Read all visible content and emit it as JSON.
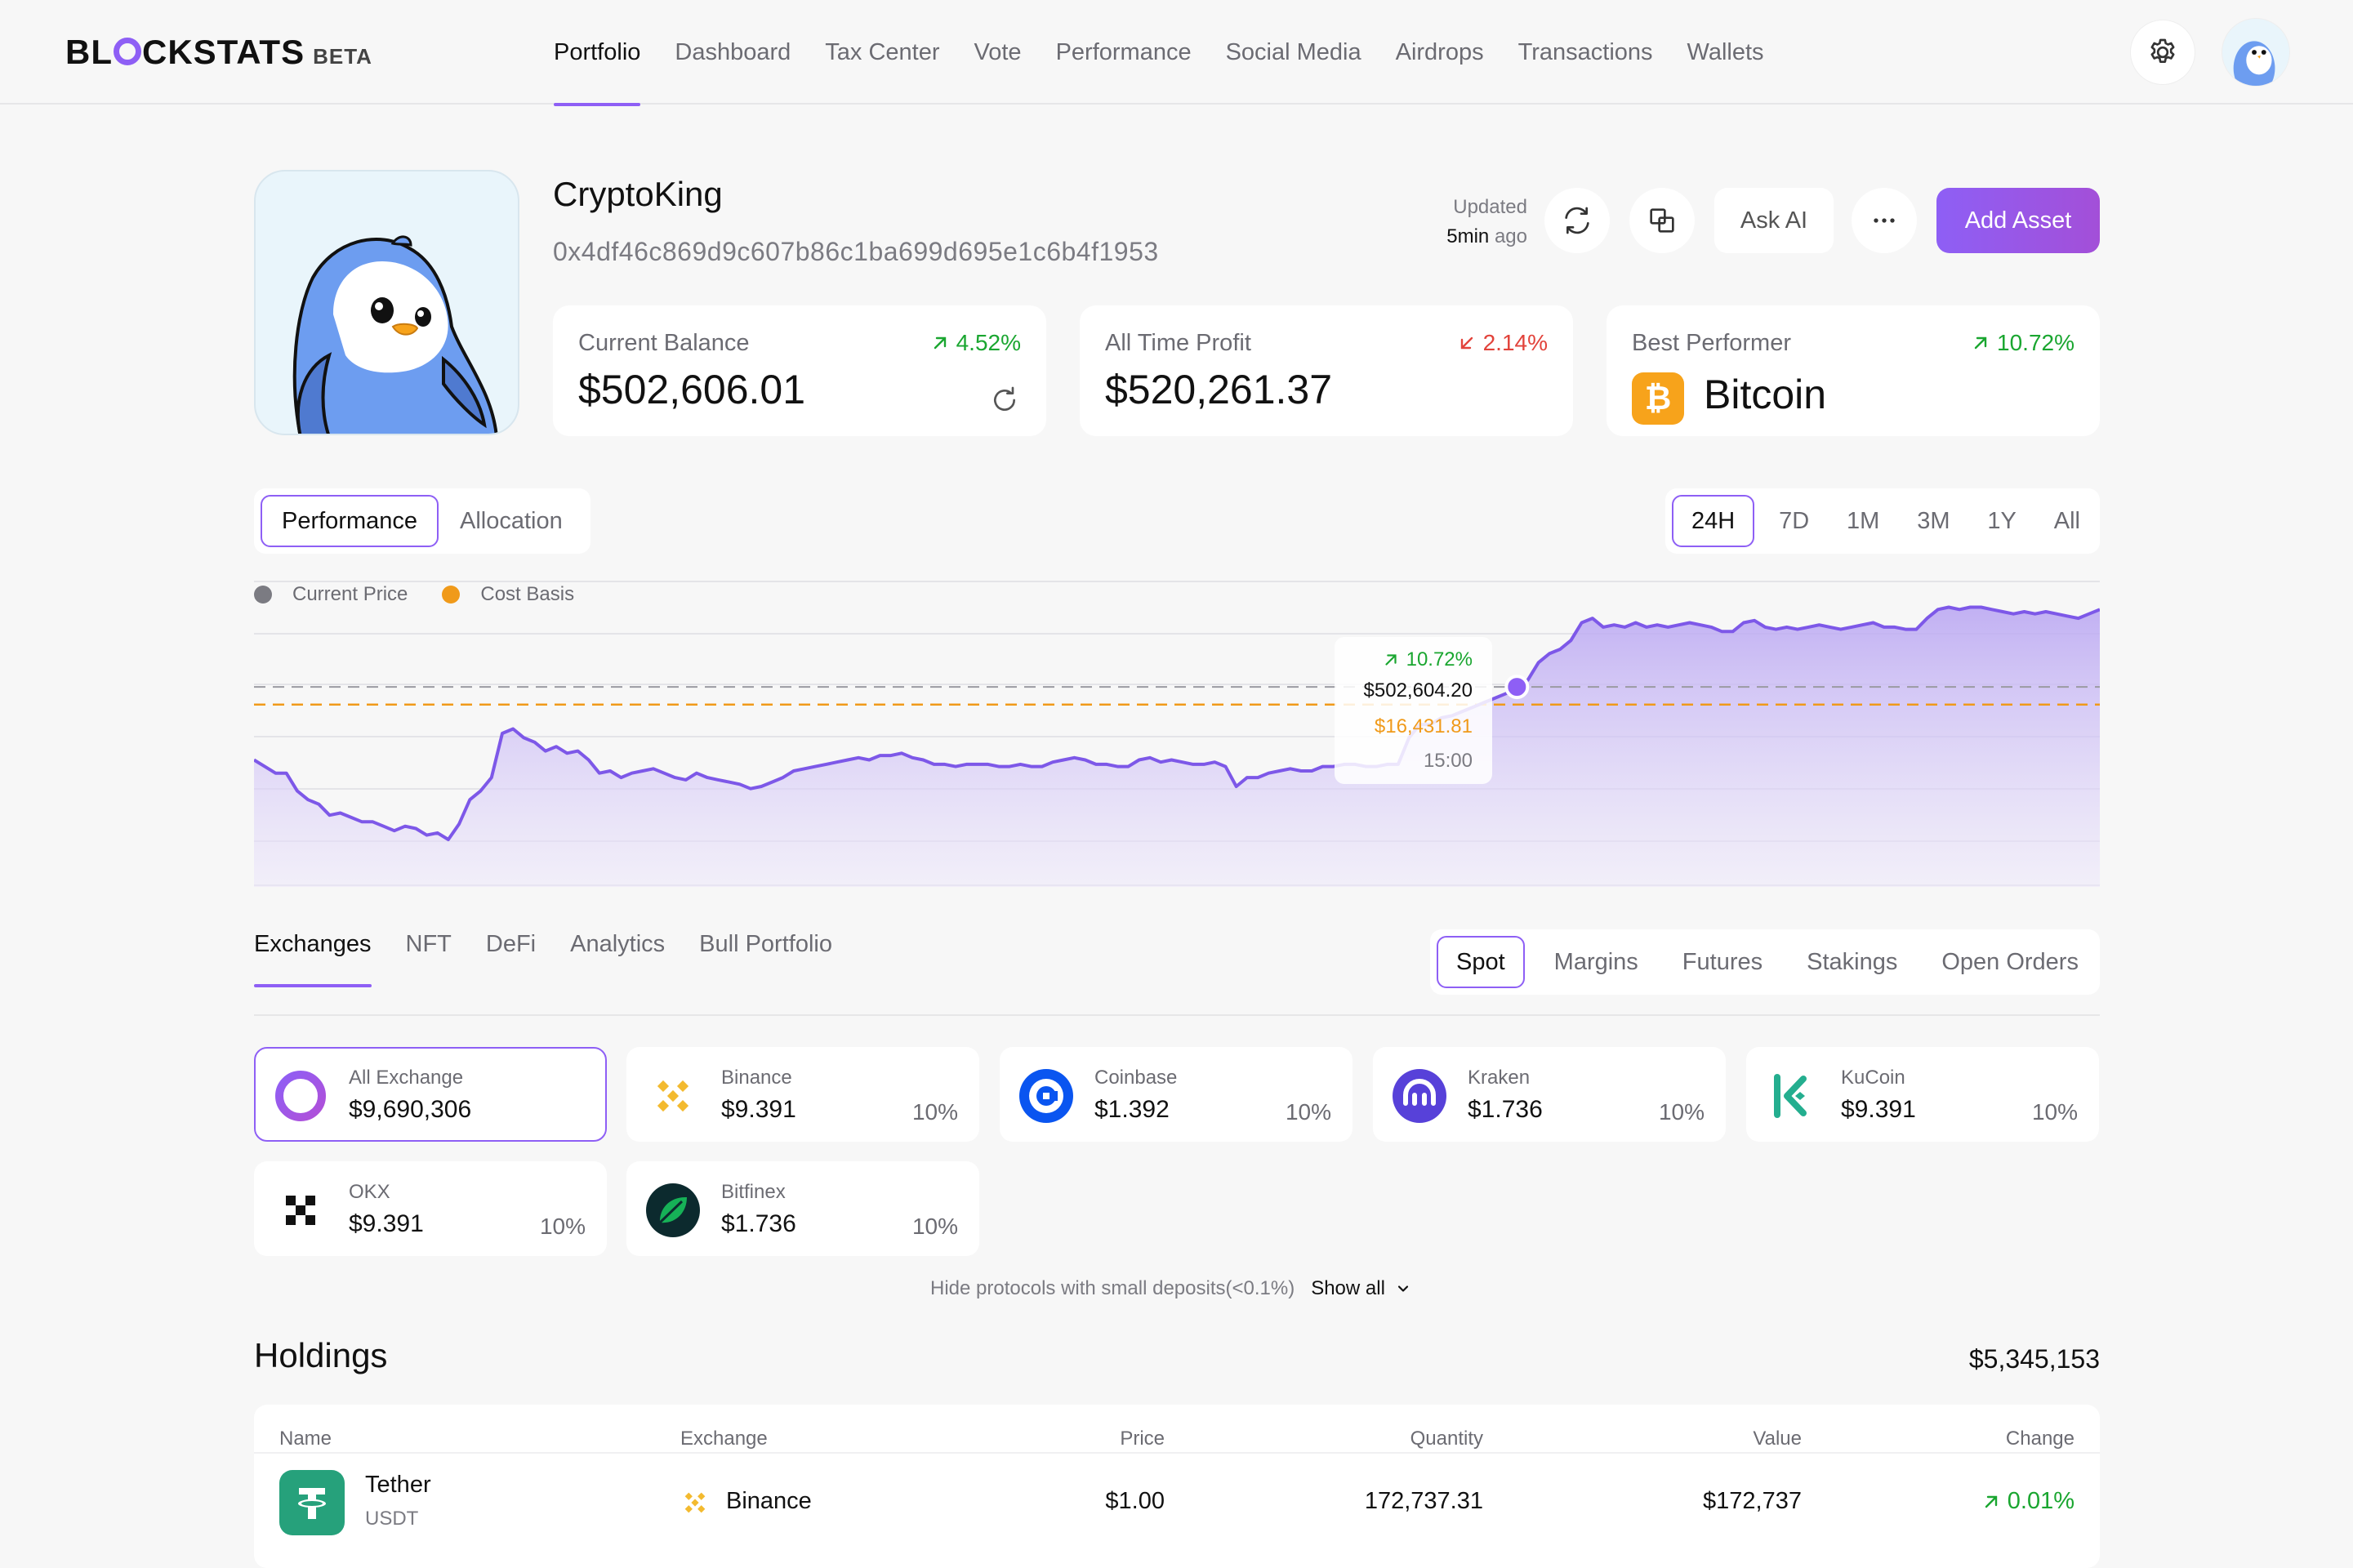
{
  "brand": {
    "name_part1": "BL",
    "name_part2": "CKSTATS",
    "beta": "BETA"
  },
  "nav": {
    "links": [
      "Portfolio",
      "Dashboard",
      "Tax Center",
      "Vote",
      "Performance",
      "Social Media",
      "Airdrops",
      "Transactions",
      "Wallets"
    ],
    "active": "Portfolio"
  },
  "profile": {
    "name": "CryptoKing",
    "address": "0x4df46c869d9c607b86c1ba699d695e1c6b4f1953",
    "updated_label": "Updated",
    "updated_time": "5min",
    "updated_suffix": "ago",
    "ask_ai": "Ask AI",
    "add_asset": "Add Asset"
  },
  "stats": {
    "balance": {
      "label": "Current Balance",
      "value": "$502,606.01",
      "change": "4.52%",
      "direction": "up"
    },
    "profit": {
      "label": "All Time Profit",
      "value": "$520,261.37",
      "change": "2.14%",
      "direction": "down"
    },
    "best": {
      "label": "Best Performer",
      "value": "Bitcoin",
      "change": "10.72%",
      "direction": "up"
    }
  },
  "chart_view_tabs": [
    "Performance",
    "Allocation"
  ],
  "chart_view_active": "Performance",
  "timeframes": [
    "24H",
    "7D",
    "1M",
    "3M",
    "1Y",
    "All"
  ],
  "timeframe_active": "24H",
  "legend": [
    {
      "label": "Current Price",
      "color": "#7b7b82"
    },
    {
      "label": "Cost Basis",
      "color": "#f09a1a"
    }
  ],
  "tooltip": {
    "change": "10.72%",
    "price": "$502,604.20",
    "cost": "$16,431.81",
    "time": "15:00"
  },
  "chart_data": {
    "type": "area",
    "series": [
      {
        "name": "Current Price",
        "values": [
          0.36,
          0.33,
          0.3,
          0.3,
          0.22,
          0.18,
          0.16,
          0.11,
          0.12,
          0.1,
          0.08,
          0.08,
          0.06,
          0.04,
          0.06,
          0.05,
          0.02,
          0.03,
          0.0,
          0.07,
          0.18,
          0.22,
          0.28,
          0.48,
          0.5,
          0.46,
          0.44,
          0.4,
          0.42,
          0.39,
          0.4,
          0.36,
          0.3,
          0.31,
          0.28,
          0.3,
          0.31,
          0.32,
          0.3,
          0.28,
          0.27,
          0.3,
          0.28,
          0.27,
          0.26,
          0.25,
          0.23,
          0.24,
          0.26,
          0.28,
          0.31,
          0.32,
          0.33,
          0.34,
          0.35,
          0.36,
          0.37,
          0.36,
          0.38,
          0.38,
          0.39,
          0.37,
          0.36,
          0.34,
          0.34,
          0.33,
          0.34,
          0.34,
          0.34,
          0.33,
          0.33,
          0.34,
          0.33,
          0.33,
          0.35,
          0.36,
          0.37,
          0.36,
          0.34,
          0.34,
          0.33,
          0.33,
          0.36,
          0.37,
          0.35,
          0.36,
          0.35,
          0.34,
          0.34,
          0.35,
          0.33,
          0.24,
          0.28,
          0.28,
          0.3,
          0.31,
          0.32,
          0.31,
          0.31,
          0.33,
          0.33,
          0.34,
          0.34,
          0.33,
          0.33,
          0.34,
          0.34,
          0.46,
          0.52,
          0.52,
          0.55,
          0.56,
          0.58,
          0.6,
          0.62,
          0.64,
          0.66,
          0.69,
          0.72,
          0.8,
          0.84,
          0.86,
          0.9,
          0.98,
          1.0,
          0.96,
          0.97,
          0.96,
          0.98,
          0.96,
          0.97,
          0.96,
          0.97,
          0.98,
          0.97,
          0.96,
          0.94,
          0.94,
          0.98,
          0.99,
          0.96,
          0.95,
          0.96,
          0.95,
          0.96,
          0.97,
          0.96,
          0.95,
          0.96,
          0.97,
          0.98,
          0.96,
          0.96,
          0.95,
          0.95,
          1.0,
          1.04,
          1.05,
          1.04,
          1.05,
          1.05,
          1.04,
          1.03,
          1.02,
          1.03,
          1.02,
          1.03,
          1.02,
          1.01,
          1.0,
          1.02,
          1.04
        ]
      },
      {
        "name": "Cost Basis",
        "values": [
          0.61
        ]
      }
    ],
    "ylim": [
      0,
      1.1
    ]
  },
  "section_tabs": [
    "Exchanges",
    "NFT",
    "DeFi",
    "Analytics",
    "Bull Portfolio"
  ],
  "section_tab_active": "Exchanges",
  "market_tabs": [
    "Spot",
    "Margins",
    "Futures",
    "Stakings",
    "Open Orders"
  ],
  "market_tab_active": "Spot",
  "exchanges": [
    {
      "name": "All Exchange",
      "value": "$9,690,306",
      "pct": "",
      "icon": "all-exchange-icon"
    },
    {
      "name": "Binance",
      "value": "$9.391",
      "pct": "10%",
      "icon": "binance-icon"
    },
    {
      "name": "Coinbase",
      "value": "$1.392",
      "pct": "10%",
      "icon": "coinbase-icon"
    },
    {
      "name": "Kraken",
      "value": "$1.736",
      "pct": "10%",
      "icon": "kraken-icon"
    },
    {
      "name": "KuCoin",
      "value": "$9.391",
      "pct": "10%",
      "icon": "kucoin-icon"
    },
    {
      "name": "OKX",
      "value": "$9.391",
      "pct": "10%",
      "icon": "okx-icon"
    },
    {
      "name": "Bitfinex",
      "value": "$1.736",
      "pct": "10%",
      "icon": "bitfinex-icon"
    }
  ],
  "hide_small": "Hide protocols with small deposits(<0.1%)",
  "show_all": "Show all",
  "holdings": {
    "title": "Holdings",
    "total": "$5,345,153",
    "columns": [
      "Name",
      "Exchange",
      "Price",
      "Quantity",
      "Value",
      "Change"
    ],
    "rows": [
      {
        "name": "Tether",
        "symbol": "USDT",
        "exchange": "Binance",
        "price": "$1.00",
        "quantity": "172,737.31",
        "value": "$172,737",
        "change": "0.01%"
      }
    ]
  }
}
